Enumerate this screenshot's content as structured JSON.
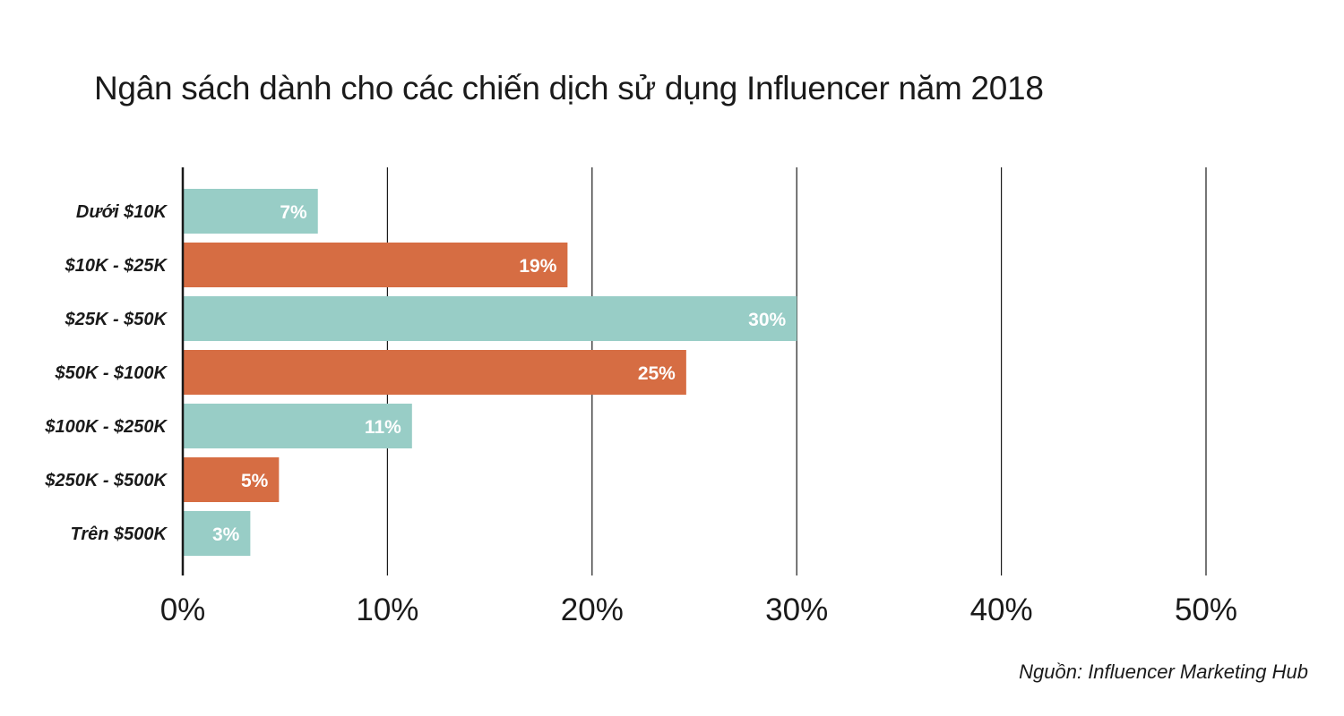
{
  "chart_data": {
    "type": "bar",
    "orientation": "horizontal",
    "title": "Ngân sách dành cho các chiến dịch sử dụng Influencer năm 2018",
    "categories": [
      "Dưới $10K",
      "$10K - $25K",
      "$25K - $50K",
      "$50K - $100K",
      "$100K - $250K",
      "$250K - $500K",
      "Trên $500K"
    ],
    "values": [
      6.6,
      18.8,
      30,
      24.6,
      11.2,
      4.7,
      3.3
    ],
    "value_labels": [
      "7%",
      "19%",
      "30%",
      "25%",
      "11%",
      "5%",
      "3%"
    ],
    "xlim": [
      0,
      50
    ],
    "xticks": [
      0,
      10,
      20,
      30,
      40,
      50
    ],
    "xtick_labels": [
      "0%",
      "10%",
      "20%",
      "30%",
      "40%",
      "50%"
    ],
    "vertical_grid": true,
    "colors": [
      "#98cdc6",
      "#d66d43",
      "#98cdc6",
      "#d66d43",
      "#98cdc6",
      "#d66d43",
      "#98cdc6"
    ],
    "source": "Nguồn: Influencer Marketing Hub"
  }
}
